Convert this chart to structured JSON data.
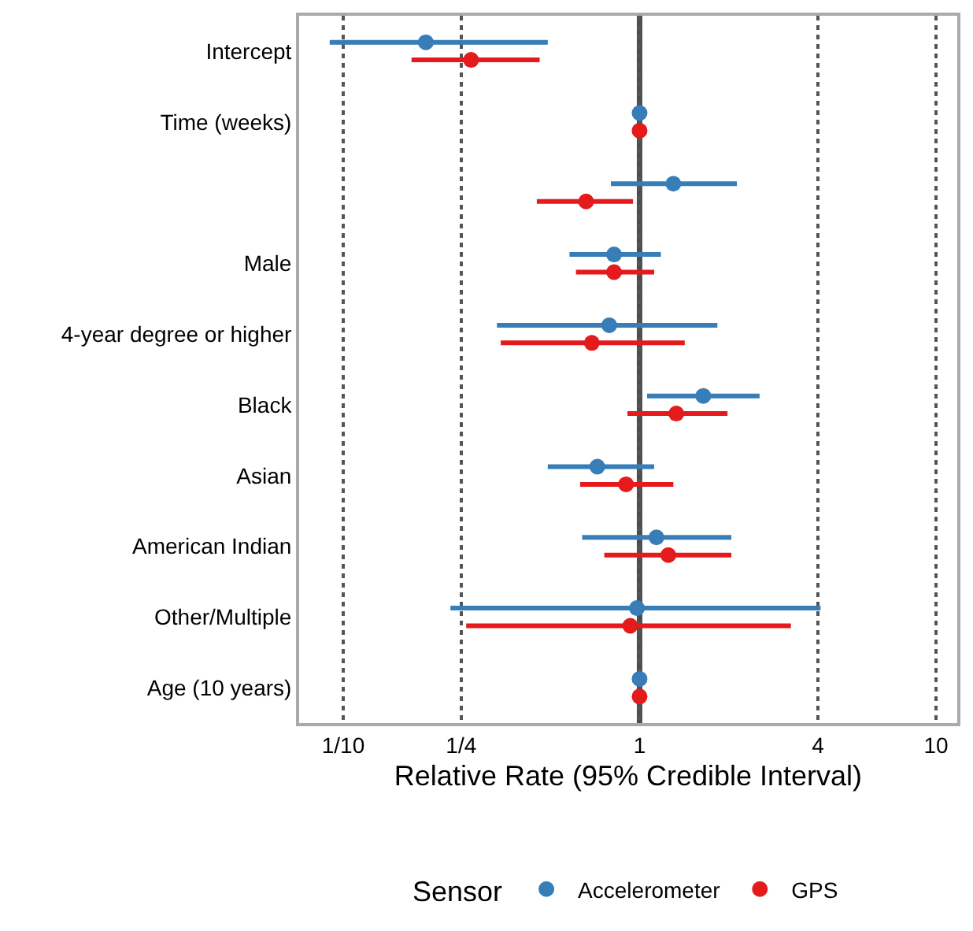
{
  "chart_data": {
    "type": "scatter",
    "orientation": "horizontal",
    "xlabel": "Relative Rate (95% Credible Interval)",
    "legend_title": "Sensor",
    "categories": [
      "Intercept",
      "Time (weeks)",
      null,
      "Male",
      "4-year degree or higher",
      "Black",
      "Asian",
      "American Indian",
      "Other/Multiple",
      "Age (10 years)"
    ],
    "series": [
      {
        "name": "Accelerometer",
        "color": "#377eb8",
        "values": [
          0.19,
          1.0,
          1.3,
          0.82,
          0.79,
          1.64,
          0.72,
          1.14,
          0.98,
          1.0
        ],
        "errors": [
          [
            0.09,
            0.49
          ],
          null,
          [
            0.8,
            2.13
          ],
          [
            0.58,
            1.18
          ],
          [
            0.33,
            1.83
          ],
          [
            1.06,
            2.54
          ],
          [
            0.49,
            1.12
          ],
          [
            0.64,
            2.04
          ],
          [
            0.23,
            4.08
          ],
          null
        ]
      },
      {
        "name": "GPS",
        "color": "#e41a1c",
        "values": [
          0.27,
          1.0,
          0.66,
          0.82,
          0.69,
          1.33,
          0.9,
          1.25,
          0.93,
          1.0
        ],
        "errors": [
          [
            0.17,
            0.46
          ],
          null,
          [
            0.45,
            0.95
          ],
          [
            0.61,
            1.12
          ],
          [
            0.34,
            1.42
          ],
          [
            0.91,
            1.98
          ],
          [
            0.63,
            1.3
          ],
          [
            0.76,
            2.04
          ],
          [
            0.26,
            3.24
          ],
          null
        ]
      }
    ],
    "log": "x",
    "xlim": [
      0.071,
      11.8
    ],
    "xticks": [
      {
        "value": 0.1,
        "label": "1/10"
      },
      {
        "value": 0.25,
        "label": "1/4"
      },
      1,
      4,
      10
    ],
    "ref_lines": [
      {
        "axis": "x",
        "value": 1,
        "color": "#4d4d4d"
      }
    ],
    "grid": "x",
    "legend": "bottom",
    "marker": "circle"
  }
}
